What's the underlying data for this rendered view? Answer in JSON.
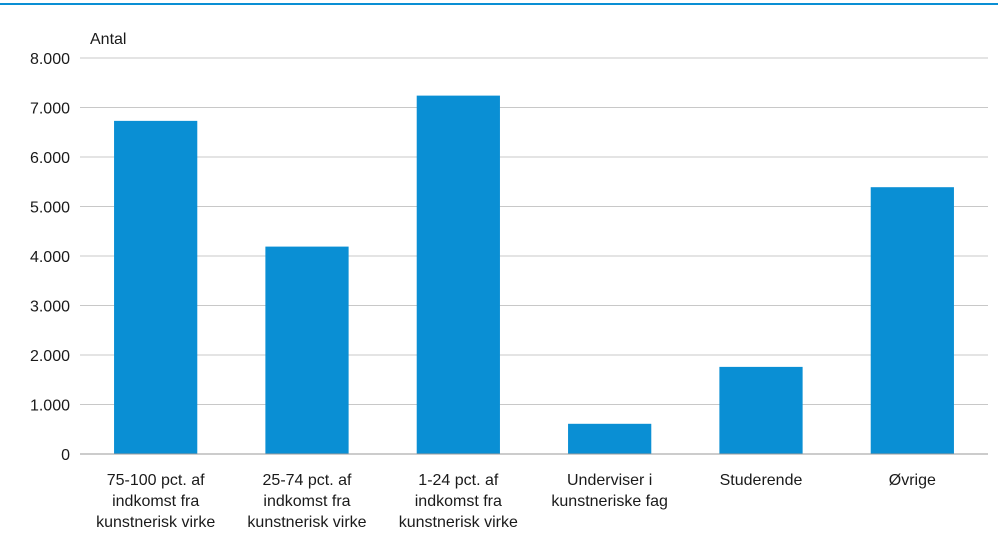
{
  "chart_data": {
    "type": "bar",
    "ylabel": "Antal",
    "categories": [
      [
        "75-100 pct. af",
        "indkomst fra",
        "kunstnerisk virke"
      ],
      [
        "25-74 pct. af",
        "indkomst fra",
        "kunstnerisk virke"
      ],
      [
        "1-24 pct. af",
        "indkomst fra",
        "kunstnerisk virke"
      ],
      [
        "Underviser i",
        "kunstneriske fag"
      ],
      [
        "Studerende"
      ],
      [
        "Øvrige"
      ]
    ],
    "values": [
      6730,
      4190,
      7240,
      610,
      1760,
      5390
    ],
    "ylim": [
      0,
      8000
    ],
    "yticks": [
      0,
      1000,
      2000,
      3000,
      4000,
      5000,
      6000,
      7000,
      8000
    ],
    "ytick_labels": [
      "0",
      "1.000",
      "2.000",
      "3.000",
      "4.000",
      "5.000",
      "6.000",
      "7.000",
      "8.000"
    ],
    "grid": true,
    "colors": {
      "bar": "#0a8fd4",
      "grid": "#c8c8c8",
      "axis": "#9a9a9a",
      "text": "#1a1a1a",
      "top_rule": "#0a8fd4"
    }
  }
}
